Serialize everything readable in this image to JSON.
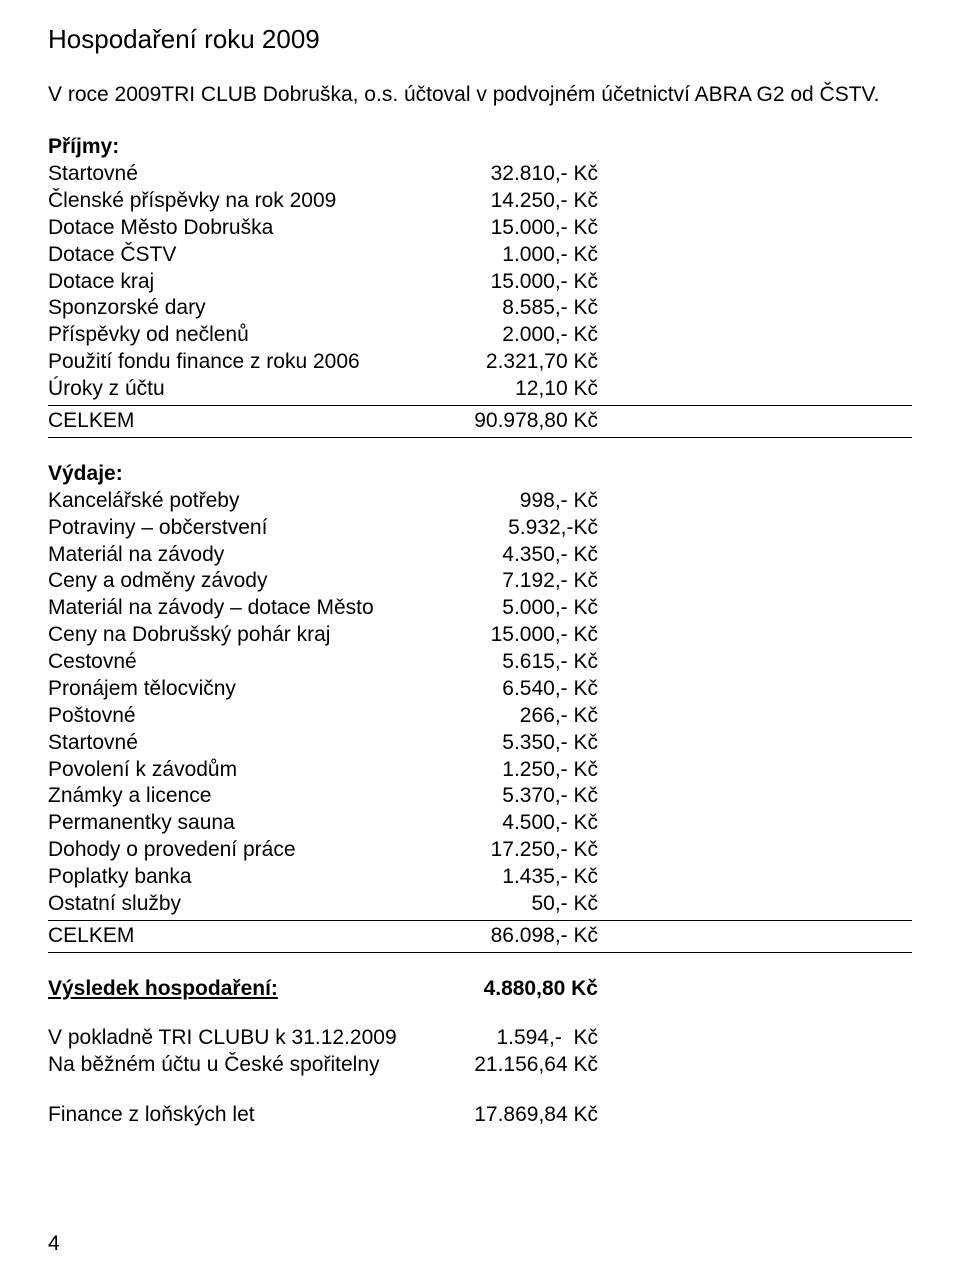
{
  "title": "Hospodaření roku 2009",
  "intro": "V roce 2009TRI CLUB Dobruška, o.s. účtoval v podvojném účetnictví ABRA  G2 od ČSTV.",
  "income": {
    "label": "Příjmy:",
    "items": [
      {
        "label": "Startovné",
        "value": "32.810,- Kč"
      },
      {
        "label": "Členské příspěvky na rok 2009",
        "value": "14.250,- Kč"
      },
      {
        "label": "Dotace Město Dobruška",
        "value": "15.000,- Kč"
      },
      {
        "label": "Dotace ČSTV",
        "value": "1.000,- Kč"
      },
      {
        "label": "Dotace kraj",
        "value": "15.000,- Kč"
      },
      {
        "label": "Sponzorské dary",
        "value": "8.585,- Kč"
      },
      {
        "label": "Příspěvky od nečlenů",
        "value": "2.000,- Kč"
      },
      {
        "label": "Použití fondu finance z roku 2006",
        "value": "2.321,70 Kč"
      },
      {
        "label": "Úroky z účtu",
        "value": "12,10 Kč"
      }
    ],
    "total_label": "CELKEM",
    "total_value": "90.978,80 Kč"
  },
  "expenses": {
    "label": "Výdaje:",
    "items": [
      {
        "label": "Kancelářské potřeby",
        "value": "998,- Kč"
      },
      {
        "label": "Potraviny – občerstvení",
        "value": "5.932,-Kč"
      },
      {
        "label": "Materiál na závody",
        "value": "4.350,- Kč"
      },
      {
        "label": "Ceny a odměny závody",
        "value": "7.192,- Kč"
      },
      {
        "label": "Materiál na závody – dotace Město",
        "value": "5.000,- Kč"
      },
      {
        "label": "Ceny na Dobrušský pohár kraj",
        "value": "15.000,- Kč"
      },
      {
        "label": "Cestovné",
        "value": "5.615,- Kč"
      },
      {
        "label": "Pronájem tělocvičny",
        "value": "6.540,- Kč"
      },
      {
        "label": "Poštovné",
        "value": "266,- Kč"
      },
      {
        "label": "Startovné",
        "value": "5.350,- Kč"
      },
      {
        "label": "Povolení k závodům",
        "value": "1.250,- Kč"
      },
      {
        "label": "Známky a licence",
        "value": "5.370,- Kč"
      },
      {
        "label": "Permanentky sauna",
        "value": "4.500,- Kč"
      },
      {
        "label": "Dohody o provedení práce",
        "value": "17.250,- Kč"
      },
      {
        "label": "Poplatky banka",
        "value": "1.435,- Kč"
      },
      {
        "label": "Ostatní služby",
        "value": "50,- Kč"
      }
    ],
    "total_label": "CELKEM",
    "total_value": "86.098,- Kč"
  },
  "result": {
    "label": "Výsledek hospodaření:",
    "value": "4.880,80 Kč"
  },
  "balances": [
    {
      "label": "V pokladně TRI CLUBU k 31.12.2009",
      "value": "1.594,-  Kč"
    },
    {
      "label": "Na běžném účtu u České spořitelny",
      "value": "21.156,64 Kč"
    }
  ],
  "extra": [
    {
      "label": "Finance z loňských let",
      "value": "17.869,84 Kč"
    }
  ],
  "page_number": "4"
}
